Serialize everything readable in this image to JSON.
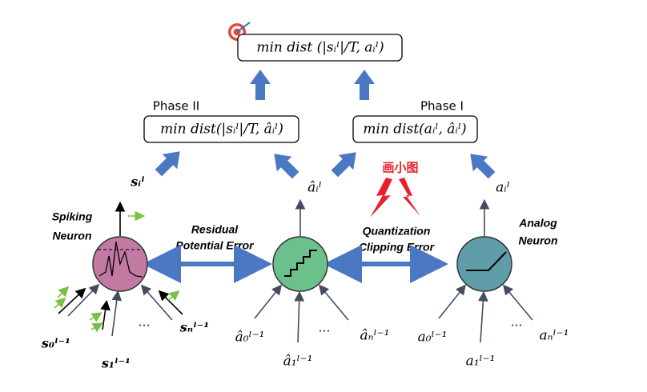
{
  "objective": "min dist (|sᵢˡ|/T, aᵢˡ)",
  "phase2": {
    "label": "Phase II",
    "objective": "min dist(|sᵢˡ|/T, âᵢˡ)"
  },
  "phase1": {
    "label": "Phase I",
    "objective": "min dist(aᵢˡ, âᵢˡ)"
  },
  "annotation": "画小图",
  "spiking": {
    "name": [
      "Spiking",
      "Neuron"
    ],
    "output": "sᵢˡ",
    "inputs": [
      "s₀ˡ⁻¹",
      "s₁ˡ⁻¹",
      "sₙˡ⁻¹"
    ],
    "ellipsis": "…"
  },
  "residual_error": [
    "Residual",
    "Potential Error"
  ],
  "quantized": {
    "output": "âᵢˡ",
    "inputs": [
      "â₀ˡ⁻¹",
      "â₁ˡ⁻¹",
      "âₙˡ⁻¹"
    ],
    "ellipsis": "…"
  },
  "quantization_error": [
    "Quantization",
    "Clipping Error"
  ],
  "analog": {
    "name": [
      "Analog",
      "Neuron"
    ],
    "output": "aᵢˡ",
    "inputs": [
      "a₀ˡ⁻¹",
      "a₁ˡ⁻¹",
      "aₙˡ⁻¹"
    ],
    "ellipsis": "…"
  }
}
